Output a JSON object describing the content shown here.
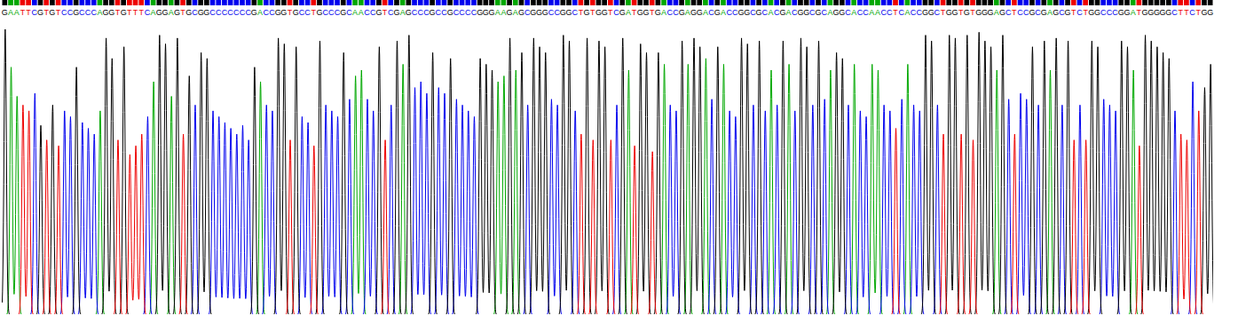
{
  "chart_data": {
    "type": "chromatogram",
    "sequence": "GAATTCGTGTCCGCCCAGGTGTTTCAGGAGTGCGGCCCCCCCGACCGGTGCCTGCCCGCAACCGTCGAGCCCGCCGCCCCGGGAAGAGCGGGCCGGCTGTGGTCGATGGTGACCGAGGACGACCGGCGCACGACGGCGCAGGCACCAACCTCACCGGCTGGTGTGGGAGCTCCGCGAGCGTCTGGCCCGGATGGGGGCTTCTGG",
    "values": [
      98,
      85,
      75,
      72,
      70,
      76,
      65,
      60,
      72,
      58,
      70,
      68,
      85,
      66,
      64,
      62,
      70,
      95,
      88,
      60,
      92,
      55,
      58,
      62,
      68,
      80,
      96,
      93,
      75,
      95,
      62,
      82,
      72,
      90,
      88,
      70,
      68,
      66,
      64,
      62,
      65,
      60,
      85,
      80,
      72,
      70,
      95,
      93,
      60,
      92,
      68,
      66,
      58,
      94,
      72,
      70,
      68,
      90,
      74,
      82,
      84,
      74,
      70,
      92,
      60,
      72,
      94,
      86,
      96,
      78,
      80,
      76,
      90,
      78,
      76,
      88,
      74,
      72,
      70,
      68,
      88,
      86,
      84,
      80,
      82,
      95,
      84,
      90,
      72,
      95,
      92,
      90,
      74,
      72,
      96,
      94,
      70,
      62,
      95,
      60,
      94,
      92,
      60,
      72,
      95,
      84,
      58,
      93,
      90,
      56,
      90,
      86,
      72,
      70,
      94,
      86,
      95,
      92,
      88,
      74,
      92,
      86,
      70,
      68,
      95,
      93,
      72,
      94,
      70,
      84,
      72,
      94,
      86,
      70,
      95,
      92,
      72,
      94,
      74,
      84,
      90,
      88,
      72,
      86,
      70,
      68,
      86,
      84,
      72,
      70,
      64,
      74,
      86,
      72,
      70,
      96,
      94,
      72,
      62,
      96,
      95,
      62,
      96,
      60,
      97,
      94,
      92,
      84,
      96,
      74,
      62,
      76,
      74,
      92,
      72,
      94,
      84,
      95,
      72,
      94,
      60,
      72,
      60,
      94,
      92,
      74,
      72,
      70,
      94,
      92,
      84,
      58,
      96,
      94,
      92,
      90,
      88,
      70,
      62,
      60,
      80,
      70,
      78,
      86
    ],
    "series": [
      {
        "name": "A",
        "color": "#00a800"
      },
      {
        "name": "C",
        "color": "#0000ee"
      },
      {
        "name": "G",
        "color": "#000000"
      },
      {
        "name": "T",
        "color": "#ee0000"
      }
    ],
    "ylim": [
      0,
      100
    ],
    "tick_labels": false
  }
}
